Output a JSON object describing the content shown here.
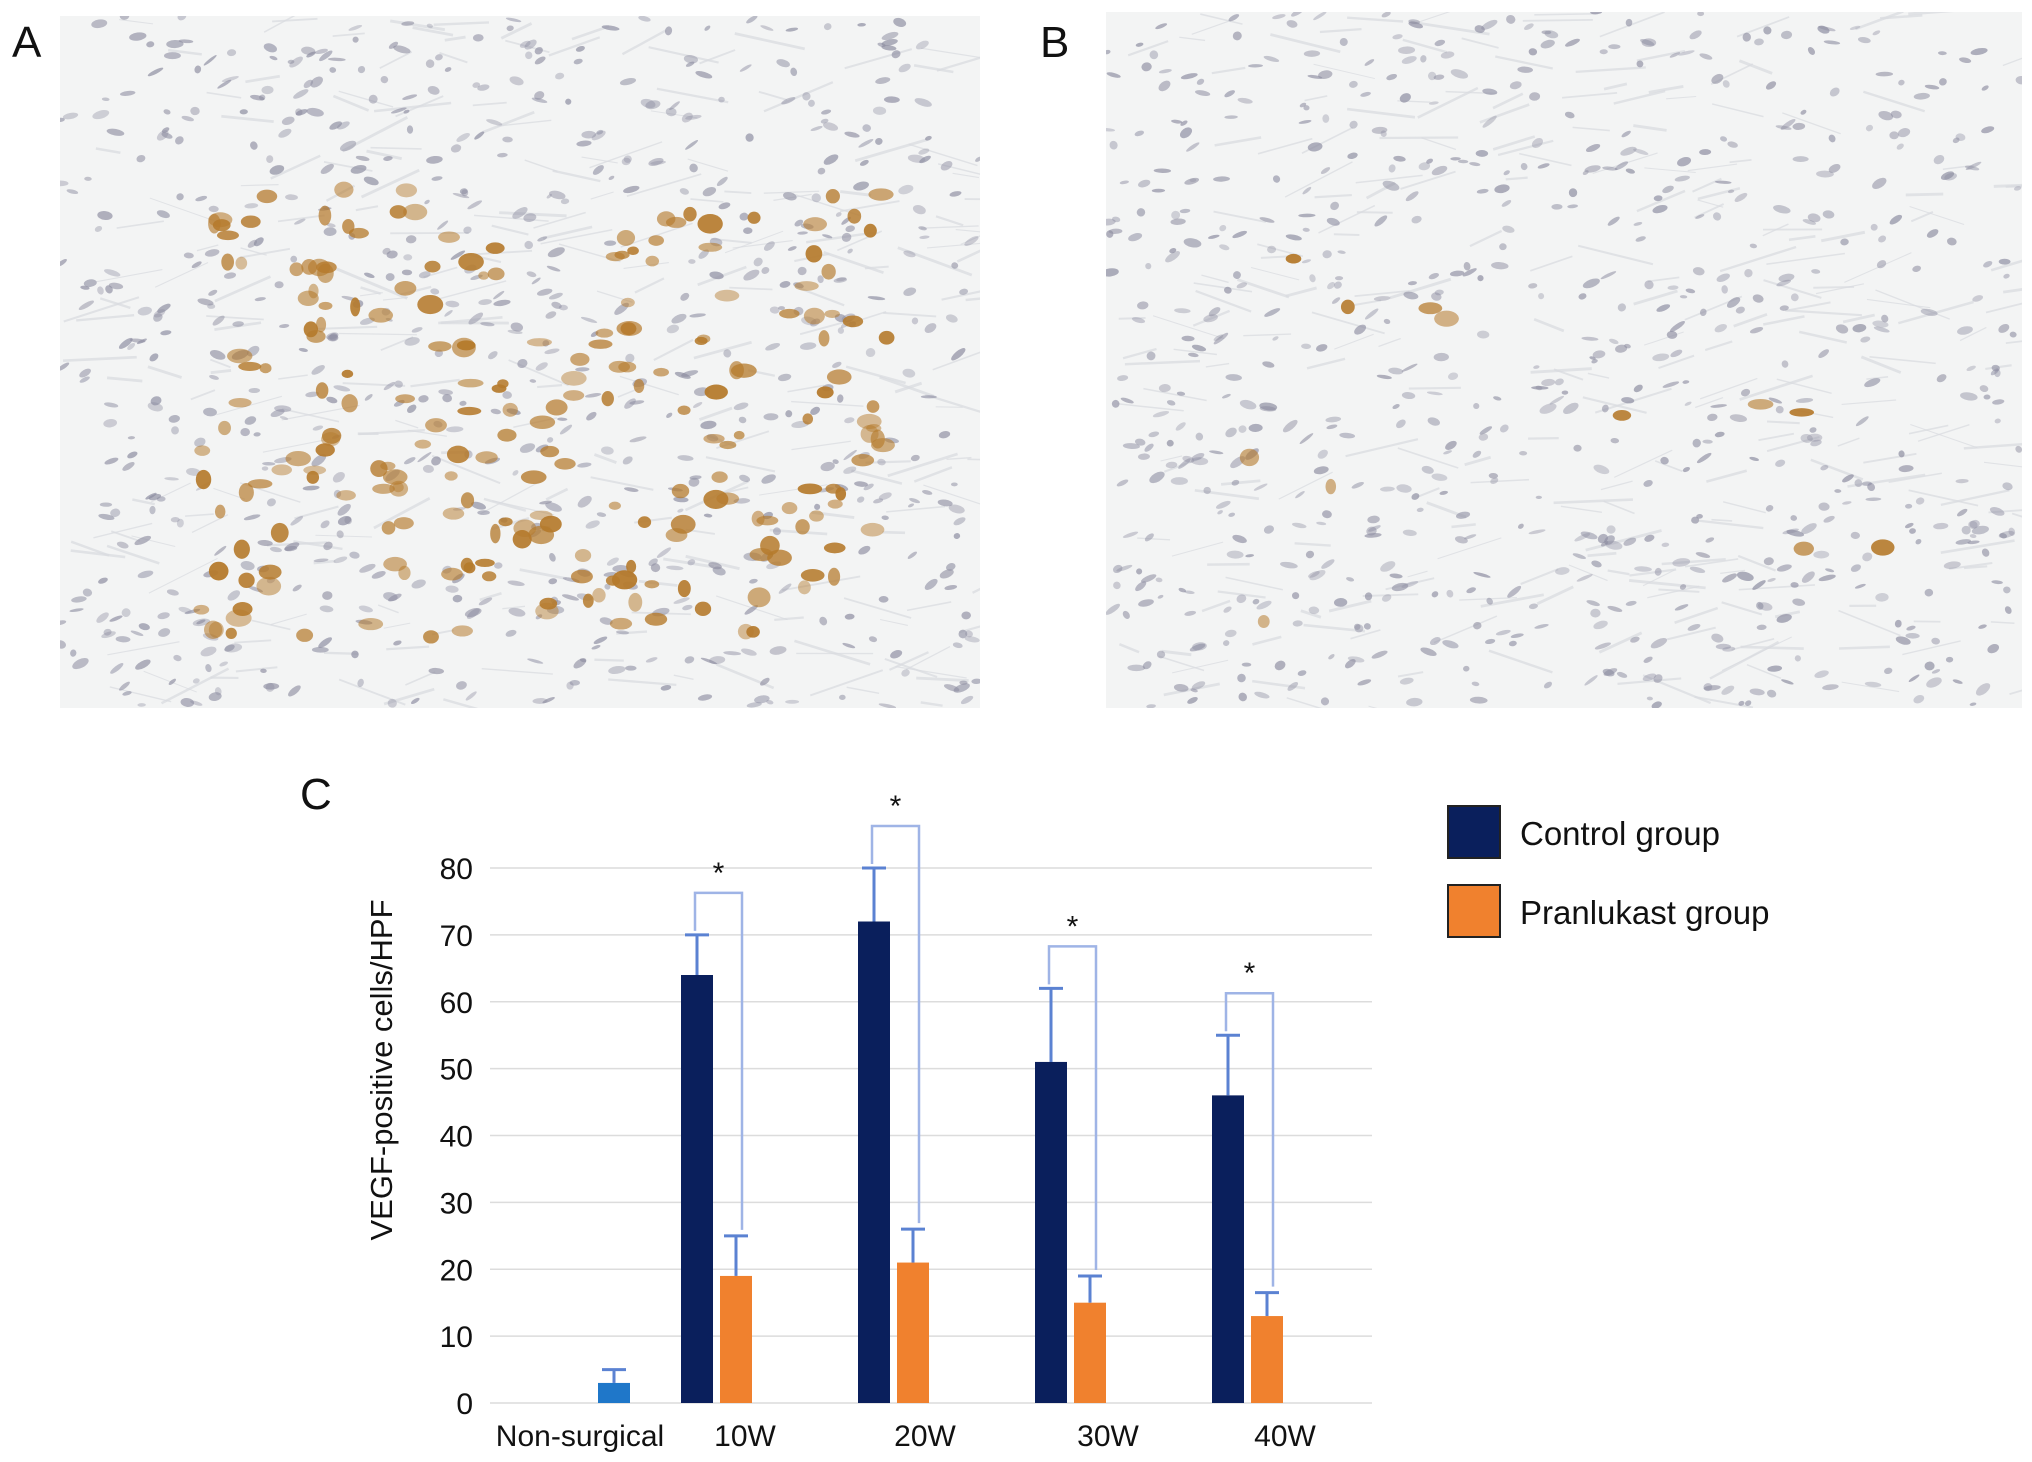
{
  "panels": {
    "a_label": "A",
    "b_label": "B",
    "c_label": "C"
  },
  "colors": {
    "control": "#0a1f5c",
    "pranlukast": "#f0812e",
    "non_surgical": "#1f77c9",
    "error_bar": "#5b82d2",
    "bracket": "#9fb4e6",
    "grid": "#dcdcdc",
    "tissue_bg": "#f3f4f4",
    "stain_brown": "#b57a2c",
    "nuclei": "#8c8ca0"
  },
  "chart_data": {
    "type": "bar",
    "ylabel": "VEGF-positive cells/HPF",
    "ylim": [
      0,
      80
    ],
    "yticks": [
      0,
      10,
      20,
      30,
      40,
      50,
      60,
      70,
      80
    ],
    "categories": [
      "Non-surgical",
      "10W",
      "20W",
      "30W",
      "40W"
    ],
    "series": [
      {
        "name": "Control group",
        "values": [
          null,
          64,
          72,
          51,
          46
        ],
        "errors": [
          null,
          6,
          8,
          11,
          9
        ]
      },
      {
        "name": "Pranlukast group",
        "values": [
          null,
          19,
          21,
          15,
          13
        ],
        "errors": [
          null,
          6,
          5,
          4,
          3.5
        ]
      }
    ],
    "non_surgical": {
      "value": 3,
      "error": 2
    },
    "significance": [
      "",
      "*",
      "*",
      "*",
      "*"
    ],
    "legend_position": "top-right",
    "grid": true
  }
}
